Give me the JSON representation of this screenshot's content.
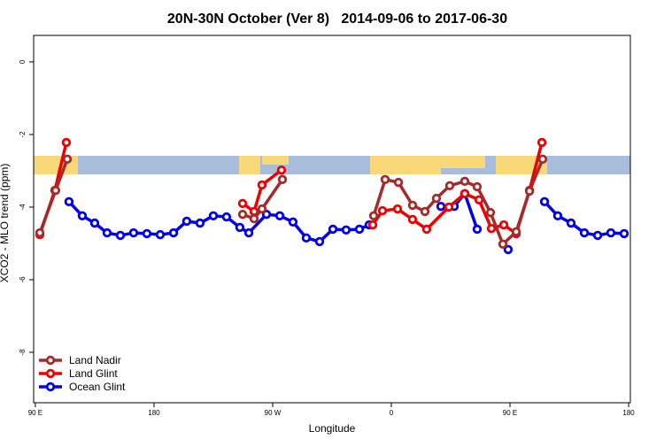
{
  "chart_data": {
    "type": "line",
    "title": "20N-30N October (Ver 8)   2014-09-06 to 2017-06-30",
    "xlabel": "Longitude",
    "ylabel": "XCO2 - MLO trend (ppm)",
    "xlim": [
      88.7,
      541.3
    ],
    "xticks": [
      {
        "value": 90,
        "label": "90 E"
      },
      180,
      {
        "value": 270,
        "label": "90 W"
      },
      {
        "value": 360,
        "label": "0"
      },
      {
        "value": 450,
        "label": "90 E"
      },
      {
        "value": 540,
        "label": "180"
      }
    ],
    "ylim": [
      -9.39,
      0.73
    ],
    "yticks": [
      0,
      -2,
      -4,
      -6,
      -8
    ],
    "legend": "bottom-left",
    "series": [
      {
        "name": "Land Nadir",
        "color": "#a52a2a",
        "x": [
          93.4,
          105.4,
          114.2,
          null,
          247.2,
          255.9,
          261.9,
          277.4,
          null,
          346.6,
          355.3,
          365.4,
          376.1,
          385.5,
          394.2,
          404.3,
          415.7,
          425.1,
          435.2,
          444.6,
          454.7,
          464.8,
          474.8
        ],
        "values": [
          -4.71,
          -3.54,
          -2.68,
          null,
          -4.2,
          -4.32,
          -4.05,
          -3.24,
          null,
          -4.24,
          -3.24,
          -3.32,
          -3.95,
          -4.12,
          -3.76,
          -3.41,
          -3.29,
          -3.44,
          -4.15,
          -5.02,
          -4.68,
          -3.56,
          -2.68
        ]
      },
      {
        "name": "Land Glint",
        "color": "#ee0000",
        "x": [
          93.4,
          104.8,
          113.5,
          null,
          247.2,
          255.9,
          261.9,
          276.7,
          null,
          345.9,
          353.3,
          364.7,
          376.1,
          386.8,
          403.6,
          415.7,
          426.5,
          435.9,
          445.3,
          454.7,
          464.8,
          474.2
        ],
        "values": [
          -4.76,
          -3.54,
          -2.22,
          null,
          -3.9,
          -4.12,
          -3.39,
          -2.98,
          null,
          -4.49,
          -4.1,
          -4.05,
          -4.34,
          -4.61,
          -4.0,
          -3.63,
          -3.8,
          -4.59,
          -4.49,
          -4.73,
          -3.54,
          -2.22
        ]
      },
      {
        "name": "Ocean Glint",
        "color": "#0000ee",
        "x": [
          115.5,
          125.6,
          135,
          144.4,
          154.5,
          164.5,
          174.6,
          184.7,
          194.8,
          204.8,
          214.9,
          225,
          235,
          245.1,
          251.9,
          265.3,
          275.4,
          285.4,
          295.5,
          305.6,
          315.7,
          325.7,
          335.8,
          343.2,
          null,
          397.6,
          407.7,
          415.7,
          425.1,
          null,
          448.6,
          null,
          476.2,
          486.2,
          496.3,
          506.4,
          516.5,
          526.5,
          536.6
        ],
        "values": [
          -3.85,
          -4.24,
          -4.44,
          -4.71,
          -4.78,
          -4.71,
          -4.73,
          -4.76,
          -4.71,
          -4.39,
          -4.44,
          -4.24,
          -4.27,
          -4.56,
          -4.71,
          -4.2,
          -4.24,
          -4.41,
          -4.85,
          -4.95,
          -4.61,
          -4.63,
          -4.61,
          -4.49,
          null,
          -3.98,
          -3.98,
          -3.63,
          -4.61,
          null,
          -5.17,
          null,
          -3.85,
          -4.24,
          -4.44,
          -4.71,
          -4.78,
          -4.71,
          -4.73
        ]
      }
    ]
  }
}
